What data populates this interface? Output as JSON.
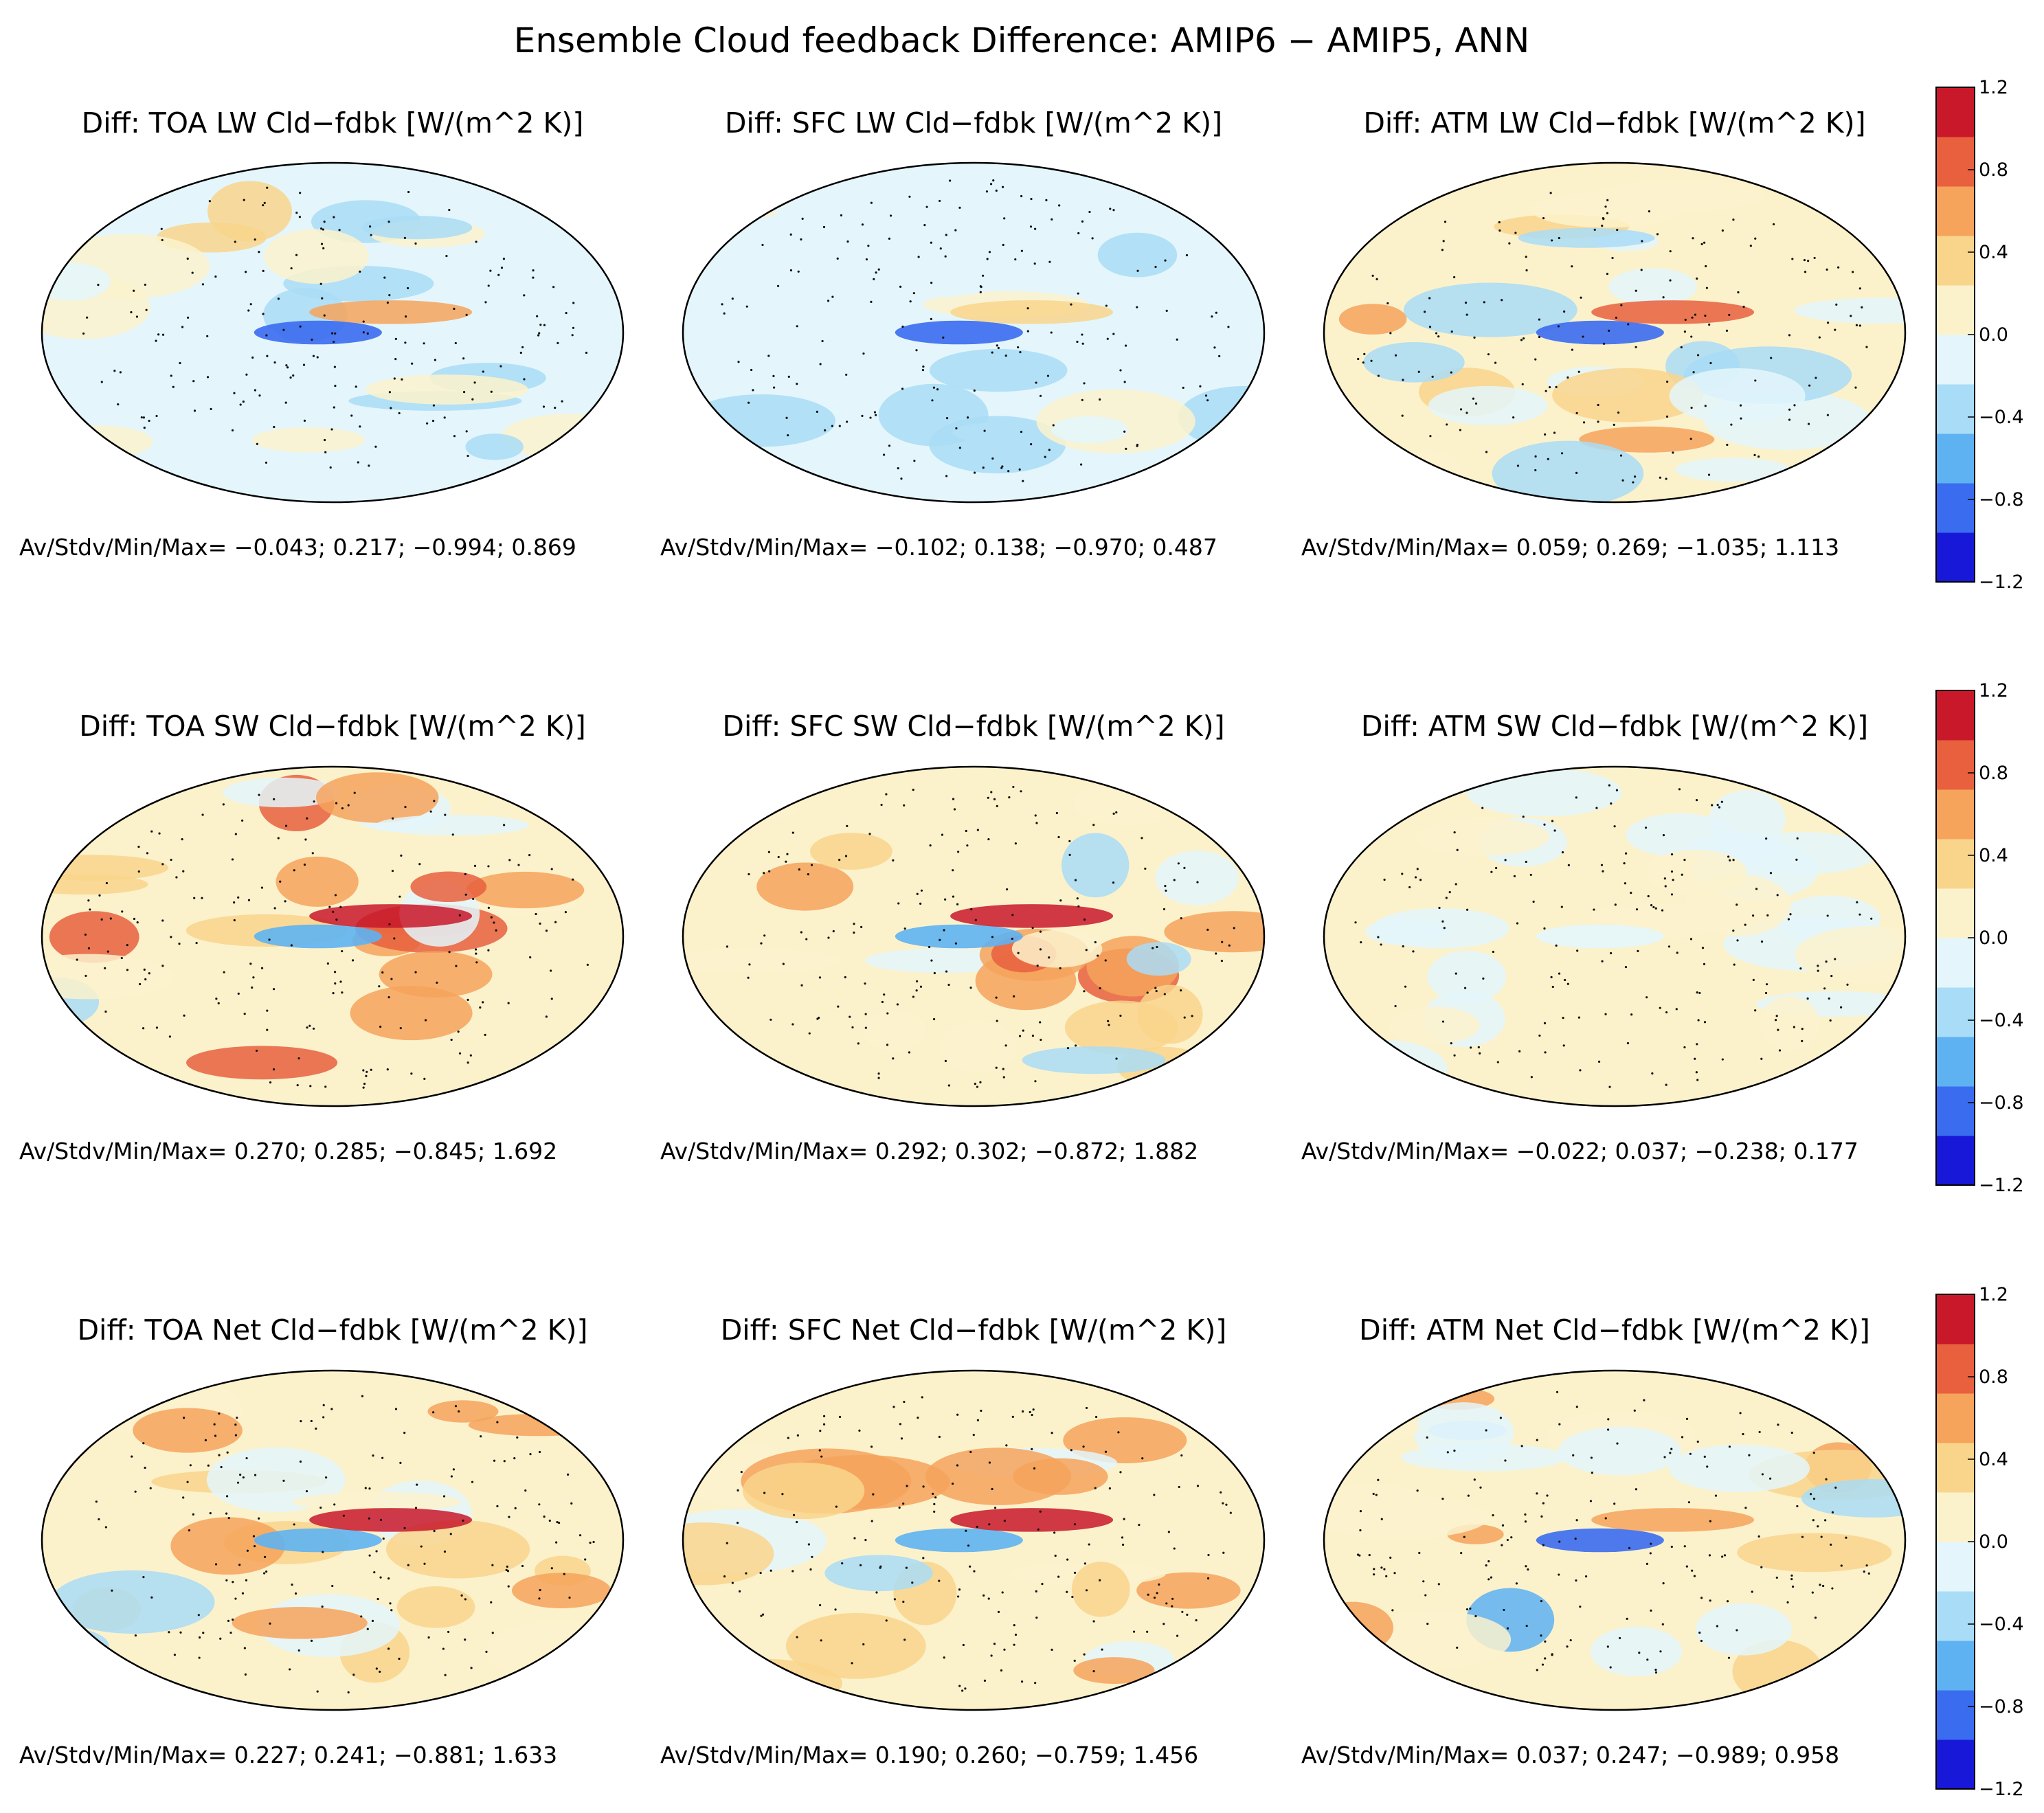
{
  "chart_data": {
    "type": "heatmap",
    "projection": "Hammer-Aitoff (global map)",
    "title": "Ensemble Cloud feedback Difference: AMIP6 − AMIP5, ANN",
    "stats_prefix": "Av/Stdv/Min/Max=",
    "colorbar": {
      "ticks": [
        "1.2",
        "0.8",
        "0.4",
        "0.0",
        "−0.4",
        "−0.8",
        "−1.2"
      ],
      "range": [
        -1.2,
        1.2
      ],
      "colors": [
        "#1818d8",
        "#3a6cf0",
        "#5eb2f2",
        "#a9dcf6",
        "#e4f6fb",
        "#fbf2cc",
        "#f9d58c",
        "#f6a35c",
        "#e8603e",
        "#c8182a"
      ]
    },
    "panels": [
      {
        "title": "Diff: TOA LW  Cld−fdbk [W/(m^2 K)]",
        "stats": "−0.043;  0.217;  −0.994;  0.869",
        "av": -0.043,
        "stdv": 0.217,
        "min": -0.994,
        "max": 0.869
      },
      {
        "title": "Diff: SFC LW  Cld−fdbk [W/(m^2 K)]",
        "stats": "−0.102;  0.138;  −0.970;  0.487",
        "av": -0.102,
        "stdv": 0.138,
        "min": -0.97,
        "max": 0.487
      },
      {
        "title": "Diff: ATM LW  Cld−fdbk [W/(m^2 K)]",
        "stats": "0.059;  0.269;  −1.035;  1.113",
        "av": 0.059,
        "stdv": 0.269,
        "min": -1.035,
        "max": 1.113
      },
      {
        "title": "Diff: TOA SW  Cld−fdbk [W/(m^2 K)]",
        "stats": "0.270;  0.285;  −0.845;  1.692",
        "av": 0.27,
        "stdv": 0.285,
        "min": -0.845,
        "max": 1.692
      },
      {
        "title": "Diff: SFC SW  Cld−fdbk [W/(m^2 K)]",
        "stats": "0.292;  0.302;  −0.872;  1.882",
        "av": 0.292,
        "stdv": 0.302,
        "min": -0.872,
        "max": 1.882
      },
      {
        "title": "Diff: ATM SW  Cld−fdbk [W/(m^2 K)]",
        "stats": "−0.022;  0.037;  −0.238;  0.177",
        "av": -0.022,
        "stdv": 0.037,
        "min": -0.238,
        "max": 0.177
      },
      {
        "title": "Diff: TOA Net Cld−fdbk [W/(m^2 K)]",
        "stats": "0.227;  0.241;  −0.881;  1.633",
        "av": 0.227,
        "stdv": 0.241,
        "min": -0.881,
        "max": 1.633
      },
      {
        "title": "Diff: SFC Net Cld−fdbk [W/(m^2 K)]",
        "stats": "0.190;  0.260;  −0.759;  1.456",
        "av": 0.19,
        "stdv": 0.26,
        "min": -0.759,
        "max": 1.456
      },
      {
        "title": "Diff: ATM Net Cld−fdbk [W/(m^2 K)]",
        "stats": "0.037;  0.247;  −0.989;  0.958",
        "av": 0.037,
        "stdv": 0.247,
        "min": -0.989,
        "max": 0.958
      }
    ]
  }
}
